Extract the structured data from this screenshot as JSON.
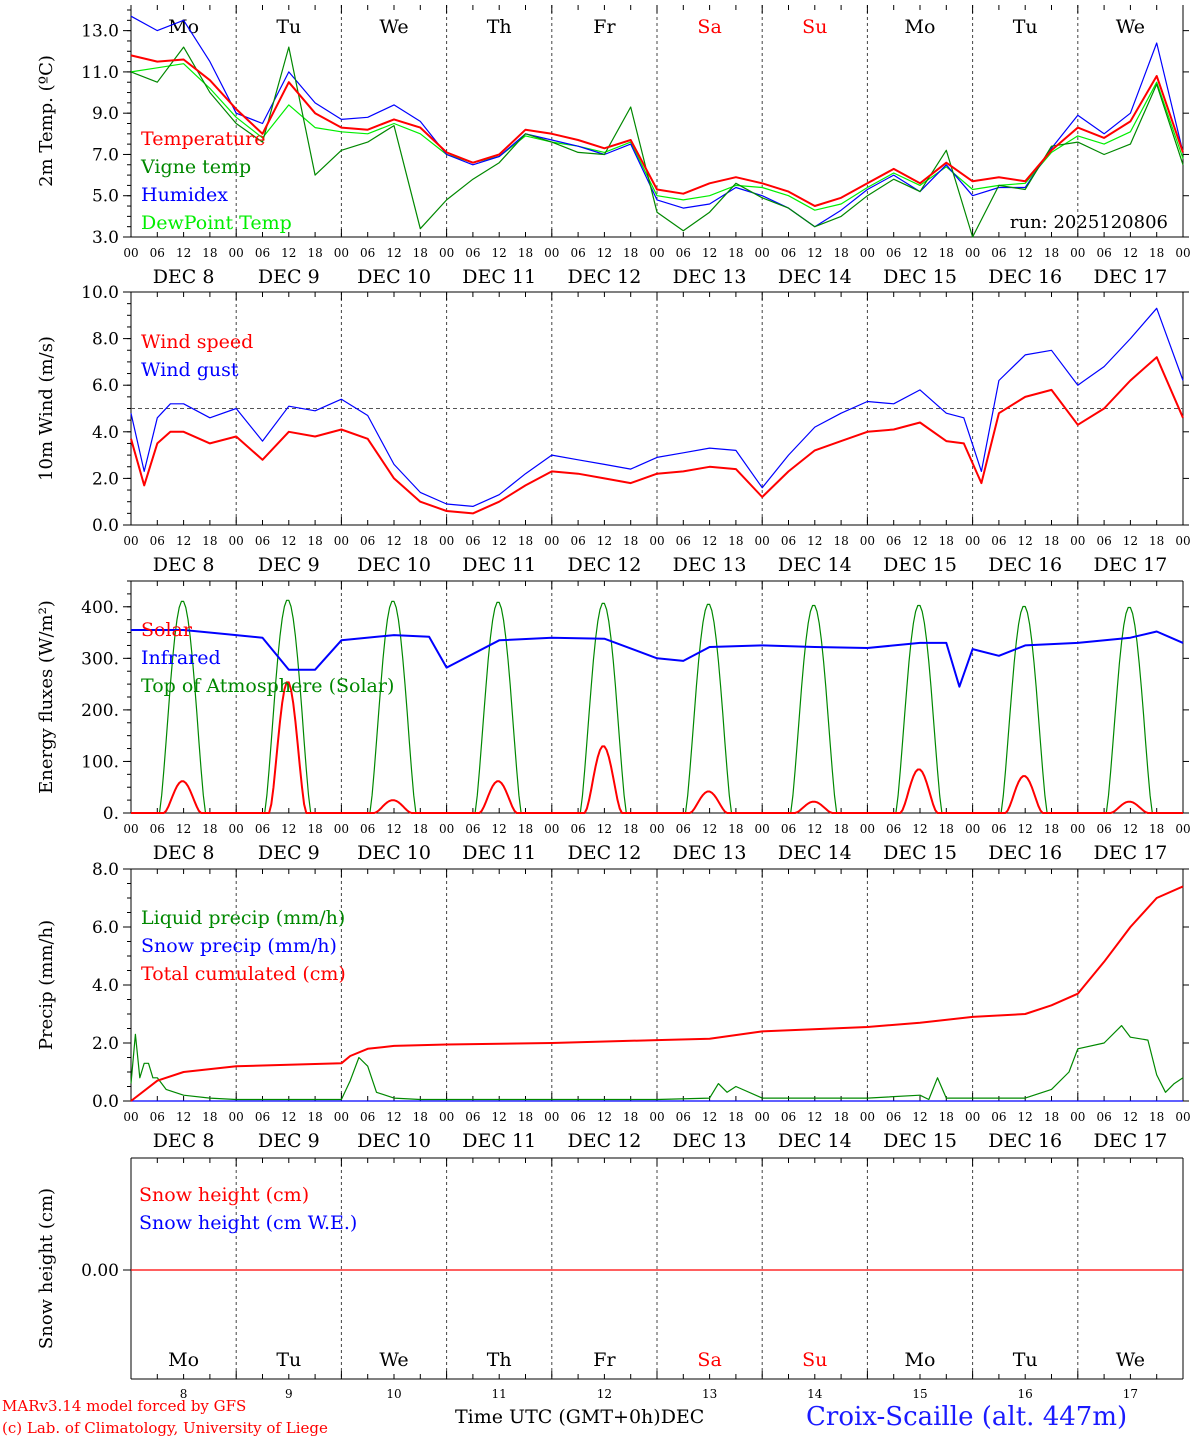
{
  "meta": {
    "run_label": "run: 2025120806",
    "station": "Croix-Scaille (alt. 447m)",
    "model_line1": "MARv3.14 model forced by GFS",
    "model_line2": "(c) Lab. of Climatology, University of Liege",
    "time_axis_label": "Time UTC (GMT+0h)",
    "time_axis_month": "DEC"
  },
  "days": [
    {
      "abbr": "Mo",
      "date_label": "DEC  8",
      "num": "8",
      "weekend": false
    },
    {
      "abbr": "Tu",
      "date_label": "DEC  9",
      "num": "9",
      "weekend": false
    },
    {
      "abbr": "We",
      "date_label": "DEC 10",
      "num": "10",
      "weekend": false
    },
    {
      "abbr": "Th",
      "date_label": "DEC 11",
      "num": "11",
      "weekend": false
    },
    {
      "abbr": "Fr",
      "date_label": "DEC 12",
      "num": "12",
      "weekend": false
    },
    {
      "abbr": "Sa",
      "date_label": "DEC 13",
      "num": "13",
      "weekend": true
    },
    {
      "abbr": "Su",
      "date_label": "DEC 14",
      "num": "14",
      "weekend": true
    },
    {
      "abbr": "Mo",
      "date_label": "DEC 15",
      "num": "15",
      "weekend": false
    },
    {
      "abbr": "Tu",
      "date_label": "DEC 16",
      "num": "16",
      "weekend": false
    },
    {
      "abbr": "We",
      "date_label": "DEC 17",
      "num": "17",
      "weekend": false
    }
  ],
  "hour_ticks": [
    "00",
    "06",
    "12",
    "18"
  ],
  "final_hour_tick": "00",
  "colors": {
    "red": "#ff0000",
    "green": "#008800",
    "blue": "#0000ff",
    "lightgreen": "#00ee00",
    "axis": "#000000"
  },
  "chart_data": [
    {
      "id": "temperature",
      "type": "line",
      "ylabel": "2m Temp. (ºC)",
      "ylim": [
        3,
        14
      ],
      "yticks": [
        "13.0",
        "11.0",
        "9.0",
        "7.0",
        "5.0",
        "3.0"
      ],
      "ytick_values": [
        13,
        11,
        9,
        7,
        5,
        3
      ],
      "x_hours": [
        0,
        6,
        12,
        18,
        24,
        30,
        36,
        42,
        48,
        54,
        60,
        66,
        72,
        78,
        84,
        90,
        96,
        102,
        108,
        114,
        120,
        126,
        132,
        138,
        144,
        150,
        156,
        162,
        168,
        174,
        180,
        186,
        192,
        198,
        204,
        210,
        216,
        222,
        228,
        234,
        240
      ],
      "series": [
        {
          "name": "Temperature",
          "color": "#ff0000",
          "width": 2,
          "values": [
            11.8,
            11.5,
            11.6,
            10.6,
            9.2,
            8.0,
            10.5,
            9.0,
            8.3,
            8.2,
            8.7,
            8.3,
            7.1,
            6.6,
            7.0,
            8.2,
            8.0,
            7.7,
            7.3,
            7.7,
            5.3,
            5.1,
            5.6,
            5.9,
            5.6,
            5.2,
            4.5,
            4.9,
            5.6,
            6.3,
            5.6,
            6.6,
            5.7,
            5.9,
            5.7,
            7.2,
            8.3,
            7.8,
            8.6,
            10.8,
            7.1
          ]
        },
        {
          "name": "Vigne temp",
          "color": "#008800",
          "width": 1.2,
          "values": [
            11.0,
            10.5,
            12.2,
            10.0,
            8.5,
            7.6,
            12.2,
            6.0,
            7.2,
            7.6,
            8.4,
            3.4,
            4.8,
            5.8,
            6.6,
            8.0,
            7.6,
            7.1,
            7.0,
            9.3,
            4.2,
            3.3,
            4.2,
            5.6,
            4.9,
            4.4,
            3.5,
            4.0,
            5.0,
            5.8,
            5.2,
            7.2,
            3.0,
            5.5,
            5.3,
            7.4,
            7.6,
            7.0,
            7.5,
            10.4,
            6.5
          ]
        },
        {
          "name": "Humidex",
          "color": "#0000ff",
          "width": 1.2,
          "values": [
            13.7,
            13.0,
            13.5,
            11.5,
            9.0,
            8.5,
            11.0,
            9.5,
            8.7,
            8.8,
            9.4,
            8.6,
            7.0,
            6.5,
            6.9,
            8.0,
            7.7,
            7.4,
            7.0,
            7.5,
            4.8,
            4.4,
            4.6,
            5.4,
            5.0,
            4.4,
            3.5,
            4.3,
            5.3,
            6.0,
            5.2,
            6.5,
            5.0,
            5.4,
            5.4,
            7.3,
            8.9,
            8.0,
            9.0,
            12.4,
            7.1
          ]
        },
        {
          "name": "DewPoint Temp",
          "color": "#00ee00",
          "width": 1.2,
          "values": [
            11.0,
            11.2,
            11.4,
            10.2,
            8.8,
            7.8,
            9.4,
            8.3,
            8.1,
            8.0,
            8.5,
            8.0,
            7.0,
            6.6,
            6.9,
            7.9,
            7.6,
            7.4,
            7.1,
            7.6,
            5.0,
            4.8,
            5.0,
            5.5,
            5.4,
            5.0,
            4.3,
            4.6,
            5.4,
            6.1,
            5.5,
            6.4,
            5.3,
            5.5,
            5.6,
            7.1,
            7.9,
            7.5,
            8.1,
            10.5,
            6.8
          ]
        }
      ]
    },
    {
      "id": "wind",
      "type": "line",
      "ylabel": "10m Wind (m/s)",
      "ylim": [
        0,
        10
      ],
      "yticks": [
        "10.0",
        "8.0",
        "6.0",
        "4.0",
        "2.0",
        "0.0"
      ],
      "ytick_values": [
        10,
        8,
        6,
        4,
        2,
        0
      ],
      "reference_line": 5.0,
      "x_hours": [
        0,
        3,
        6,
        9,
        12,
        18,
        24,
        30,
        36,
        42,
        48,
        54,
        60,
        66,
        72,
        78,
        84,
        90,
        96,
        102,
        108,
        114,
        120,
        126,
        132,
        138,
        144,
        150,
        156,
        162,
        168,
        174,
        180,
        186,
        190,
        194,
        198,
        204,
        210,
        216,
        222,
        228,
        234,
        240
      ],
      "series": [
        {
          "name": "Wind speed",
          "color": "#ff0000",
          "width": 2,
          "values": [
            3.7,
            1.7,
            3.5,
            4.0,
            4.0,
            3.5,
            3.8,
            2.8,
            4.0,
            3.8,
            4.1,
            3.7,
            2.0,
            1.0,
            0.6,
            0.5,
            1.0,
            1.7,
            2.3,
            2.2,
            2.0,
            1.8,
            2.2,
            2.3,
            2.5,
            2.4,
            1.2,
            2.3,
            3.2,
            3.6,
            4.0,
            4.1,
            4.4,
            3.6,
            3.5,
            1.8,
            4.8,
            5.5,
            5.8,
            4.3,
            5.0,
            6.2,
            7.2,
            4.6
          ]
        },
        {
          "name": "Wind gust",
          "color": "#0000ff",
          "width": 1.2,
          "values": [
            4.8,
            2.3,
            4.6,
            5.2,
            5.2,
            4.6,
            5.0,
            3.6,
            5.1,
            4.9,
            5.4,
            4.7,
            2.6,
            1.4,
            0.9,
            0.8,
            1.3,
            2.2,
            3.0,
            2.8,
            2.6,
            2.4,
            2.9,
            3.1,
            3.3,
            3.2,
            1.6,
            3.0,
            4.2,
            4.8,
            5.3,
            5.2,
            5.8,
            4.8,
            4.6,
            2.3,
            6.2,
            7.3,
            7.5,
            6.0,
            6.8,
            8.0,
            9.3,
            6.2
          ]
        }
      ]
    },
    {
      "id": "energy",
      "type": "line",
      "ylabel": "Energy fluxes (W/m²)",
      "ylim": [
        0,
        450
      ],
      "yticks": [
        "400.",
        "300.",
        "200.",
        "100.",
        "0."
      ],
      "ytick_values": [
        400,
        300,
        200,
        100,
        0
      ],
      "series": [
        {
          "name": "Solar",
          "color": "#ff0000",
          "width": 2,
          "daily_peak": [
            62,
            255,
            25,
            62,
            130,
            42,
            22,
            85,
            72,
            22
          ]
        },
        {
          "name": "Infrared",
          "color": "#0000ff",
          "width": 2,
          "x_hours": [
            0,
            12,
            24,
            30,
            36,
            42,
            48,
            60,
            68,
            72,
            84,
            96,
            108,
            120,
            126,
            132,
            144,
            156,
            168,
            180,
            186,
            189,
            192,
            198,
            204,
            216,
            228,
            234,
            240
          ],
          "values": [
            355,
            355,
            345,
            340,
            278,
            278,
            335,
            345,
            342,
            282,
            335,
            340,
            338,
            300,
            295,
            322,
            325,
            322,
            320,
            330,
            330,
            245,
            318,
            305,
            325,
            330,
            340,
            352,
            330
          ]
        },
        {
          "name": "Top of Atmosphere (Solar)",
          "color": "#008800",
          "width": 1.2,
          "daily_peak": [
            412,
            414,
            412,
            410,
            408,
            406,
            404,
            404,
            402,
            400
          ]
        }
      ],
      "daylight_hours": [
        6.5,
        17.0
      ]
    },
    {
      "id": "precip",
      "type": "line",
      "ylabel": "Precip (mm/h)",
      "ylim": [
        0,
        8
      ],
      "yticks": [
        "8.0",
        "6.0",
        "4.0",
        "2.0",
        "0.0"
      ],
      "ytick_values": [
        8,
        6,
        4,
        2,
        0
      ],
      "series": [
        {
          "name": "Liquid precip (mm/h)",
          "color": "#008800",
          "width": 1.2,
          "x_hours": [
            0,
            1,
            2,
            3,
            4,
            5,
            6,
            8,
            10,
            12,
            18,
            24,
            36,
            48,
            50,
            52,
            54,
            56,
            60,
            66,
            72,
            96,
            120,
            132,
            134,
            136,
            138,
            144,
            168,
            180,
            182,
            184,
            186,
            192,
            204,
            210,
            214,
            216,
            222,
            226,
            228,
            232,
            234,
            236,
            238,
            240
          ],
          "values": [
            0.6,
            2.3,
            0.8,
            1.3,
            1.3,
            0.8,
            0.8,
            0.4,
            0.3,
            0.2,
            0.1,
            0.05,
            0.05,
            0.05,
            0.7,
            1.5,
            1.2,
            0.3,
            0.1,
            0.05,
            0.05,
            0.05,
            0.05,
            0.1,
            0.6,
            0.3,
            0.5,
            0.1,
            0.1,
            0.2,
            0.05,
            0.8,
            0.1,
            0.1,
            0.1,
            0.4,
            1.0,
            1.8,
            2.0,
            2.6,
            2.2,
            2.1,
            0.9,
            0.3,
            0.6,
            0.8
          ]
        },
        {
          "name": "Snow precip (mm/h)",
          "color": "#0000ff",
          "width": 1.2,
          "x_hours": [
            0,
            240
          ],
          "values": [
            0,
            0
          ]
        },
        {
          "name": "Total cumulated (cm)",
          "color": "#ff0000",
          "width": 2,
          "x_hours": [
            0,
            6,
            12,
            18,
            24,
            36,
            48,
            50,
            54,
            60,
            72,
            96,
            120,
            132,
            144,
            168,
            180,
            192,
            204,
            210,
            216,
            222,
            228,
            234,
            240
          ],
          "values": [
            0,
            0.7,
            1.0,
            1.1,
            1.2,
            1.25,
            1.3,
            1.55,
            1.8,
            1.9,
            1.95,
            2.0,
            2.1,
            2.15,
            2.4,
            2.55,
            2.7,
            2.9,
            3.0,
            3.3,
            3.7,
            4.8,
            6.0,
            7.0,
            7.4
          ]
        }
      ]
    },
    {
      "id": "snow",
      "type": "line",
      "ylabel": "Snow height (cm)",
      "ytick_label": "0.00",
      "series": [
        {
          "name": "Snow height (cm)",
          "color": "#ff0000",
          "width": 1.2,
          "x_hours": [
            0,
            240
          ],
          "values": [
            0,
            0
          ]
        },
        {
          "name": "Snow height (cm W.E.)",
          "color": "#0000ff",
          "width": 1.2,
          "x_hours": [
            0,
            240
          ],
          "values": [
            0,
            0
          ]
        }
      ]
    }
  ]
}
